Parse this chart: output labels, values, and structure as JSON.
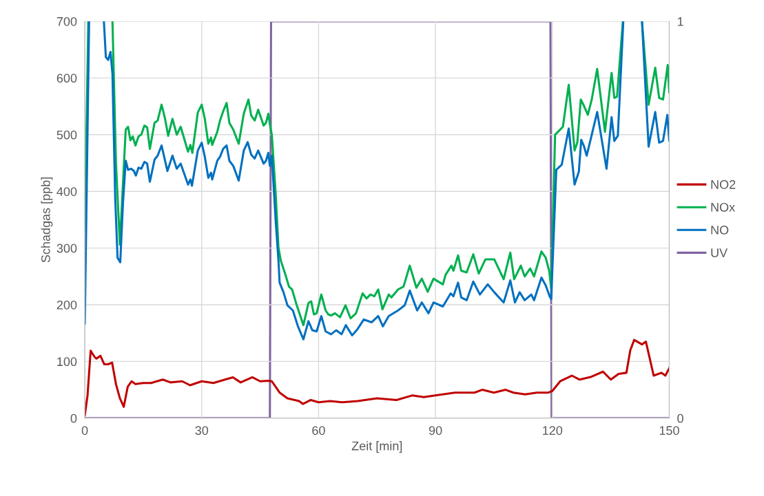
{
  "chart_data": {
    "type": "line",
    "xlabel": "Zeit [min]",
    "ylabel": "Schadgas [ppb]",
    "xlim": [
      0,
      150
    ],
    "xticks": [
      0,
      30,
      60,
      90,
      120,
      150
    ],
    "ylim": [
      0,
      700
    ],
    "yticks": [
      0,
      100,
      200,
      300,
      400,
      500,
      600,
      700
    ],
    "y2lim": [
      0,
      1
    ],
    "y2ticks": [
      0,
      1
    ],
    "grid": true,
    "legend": "right",
    "marker": "none",
    "line_style": "solid",
    "series": [
      {
        "name": "NO2",
        "color": "#c00000",
        "x": [
          0,
          0.7,
          1.5,
          2.5,
          3,
          4,
          5,
          6,
          7,
          8,
          9,
          10,
          11,
          12,
          13,
          15,
          17,
          20,
          22,
          25,
          27,
          30,
          33,
          36,
          38,
          40,
          43,
          45,
          47,
          48,
          50,
          52,
          55,
          56,
          58,
          60,
          63,
          66,
          70,
          75,
          80,
          84,
          87,
          90,
          95,
          100,
          102,
          105,
          108,
          110,
          113,
          116,
          119,
          120,
          122,
          125,
          127,
          130,
          133,
          135,
          137,
          139,
          140,
          141,
          143,
          144,
          146,
          148,
          149,
          150
        ],
        "values": [
          5,
          40,
          119,
          108,
          105,
          110,
          95,
          95,
          98,
          60,
          35,
          20,
          55,
          65,
          60,
          62,
          62,
          68,
          63,
          65,
          58,
          65,
          62,
          68,
          72,
          63,
          72,
          65,
          66,
          65,
          45,
          35,
          30,
          25,
          32,
          28,
          30,
          28,
          30,
          35,
          32,
          40,
          37,
          40,
          45,
          45,
          50,
          45,
          50,
          45,
          42,
          45,
          45,
          48,
          65,
          75,
          68,
          73,
          82,
          68,
          78,
          80,
          120,
          138,
          130,
          135,
          75,
          80,
          75,
          88
        ]
      },
      {
        "name": "NOx",
        "color": "#00b050",
        "x": [
          0,
          0.9,
          4,
          7.1,
          8,
          9,
          10.5,
          11.1,
          11.7,
          12.3,
          13,
          13.8,
          14.5,
          15.3,
          16,
          16.7,
          17.9,
          18.7,
          19.7,
          20.6,
          21.4,
          22.5,
          23.6,
          24.6,
          26.5,
          27.1,
          27.6,
          29,
          30,
          30.8,
          31.7,
          32.4,
          32.7,
          34,
          34.7,
          35.5,
          36.4,
          37.1,
          38.1,
          39.5,
          40.8,
          42,
          42.7,
          43.6,
          44.5,
          45.9,
          46.5,
          47.1,
          47.5,
          48,
          49,
          49.7,
          50.3,
          51.4,
          52.4,
          53.2,
          54.4,
          56.1,
          57.4,
          58.1,
          58.8,
          59.5,
          60.7,
          61.8,
          62.5,
          63.2,
          64.2,
          65.5,
          66.9,
          68.2,
          69.6,
          71.3,
          72.3,
          73.3,
          74.3,
          75.3,
          76.4,
          78,
          78.7,
          80.4,
          81.8,
          83.4,
          85.1,
          86.5,
          88,
          89.5,
          91.9,
          92.6,
          94.1,
          94.6,
          95.8,
          96.6,
          98,
          99.7,
          101.1,
          102.8,
          105.1,
          107.5,
          109.2,
          110.2,
          111.9,
          112.9,
          114.3,
          115.3,
          117.2,
          118.3,
          119.2,
          119.7,
          120.7,
          122,
          122.7,
          124.2,
          125.7,
          126.4,
          127.3,
          128.1,
          129.1,
          130.1,
          131.5,
          133.5,
          135.2,
          135.9,
          136.6,
          138.1,
          140,
          143,
          144.7,
          146.4,
          147.4,
          148.4,
          149.6,
          150
        ],
        "values": [
          330,
          700,
          null,
          700,
          450,
          306,
          509,
          514,
          490,
          497,
          481,
          497,
          500,
          516,
          513,
          475,
          521,
          525,
          553,
          528,
          498,
          528,
          500,
          514,
          470,
          482,
          468,
          539,
          553,
          528,
          484,
          495,
          482,
          505,
          525,
          541,
          556,
          521,
          509,
          484,
          537,
          562,
          534,
          525,
          544,
          516,
          521,
          537,
          518,
          500,
          394,
          301,
          278,
          255,
          232,
          227,
          199,
          164,
          203,
          206,
          183,
          185,
          218,
          190,
          183,
          181,
          185,
          178,
          199,
          176,
          185,
          220,
          211,
          218,
          215,
          227,
          192,
          218,
          213,
          227,
          232,
          269,
          230,
          246,
          223,
          246,
          236,
          253,
          269,
          260,
          287,
          260,
          257,
          289,
          255,
          280,
          280,
          245,
          292,
          245,
          269,
          250,
          264,
          250,
          294,
          283,
          259,
          229,
          500,
          509,
          514,
          588,
          472,
          486,
          562,
          551,
          535,
          562,
          616,
          505,
          609,
          565,
          567,
          700,
          null,
          700,
          553,
          618,
          565,
          562,
          623,
          575
        ]
      },
      {
        "name": "NO",
        "color": "#0070c0",
        "x": [
          0,
          1.1,
          3,
          4.9,
          5.4,
          6,
          6.6,
          7.1,
          7.8,
          8.4,
          9.1,
          9.8,
          10.5,
          11.1,
          11.9,
          12.6,
          13.1,
          13.8,
          14.5,
          15.3,
          16,
          16.7,
          17.9,
          18.7,
          19.7,
          21.2,
          22.5,
          23.6,
          24.6,
          26.5,
          27.1,
          27.5,
          29,
          30,
          30.8,
          31.7,
          32.4,
          32.7,
          34,
          34.7,
          35.5,
          36.4,
          37.1,
          38.1,
          39.5,
          40.8,
          41.8,
          42.7,
          43.6,
          44.5,
          45.9,
          46.5,
          47.1,
          47.5,
          48,
          49,
          49.7,
          50,
          51,
          52,
          53.4,
          54.7,
          56.1,
          57.4,
          58.4,
          59.5,
          60.7,
          61.8,
          63.2,
          64.5,
          65.9,
          67,
          68.6,
          70,
          71.6,
          73.6,
          75.3,
          76.5,
          78,
          80.4,
          82.1,
          83.4,
          85.3,
          86.5,
          88.2,
          89.5,
          91.9,
          93.9,
          94.6,
          95.8,
          96.6,
          98,
          99.7,
          101.4,
          103.4,
          105.1,
          107.5,
          109.2,
          110.4,
          111.6,
          112.9,
          114.6,
          115.3,
          117.2,
          118.3,
          119.3,
          119.7,
          121,
          122.4,
          124.2,
          125.7,
          126.8,
          127.4,
          128.1,
          128.8,
          129.8,
          131.5,
          133.9,
          135.2,
          135.9,
          136.8,
          138.2,
          140,
          143,
          144.7,
          146.4,
          147.4,
          148.4,
          149.5,
          150
        ],
        "values": [
          167,
          700,
          null,
          700,
          637,
          632,
          646,
          607,
          389,
          283,
          275,
          380,
          454,
          438,
          440,
          436,
          428,
          442,
          440,
          452,
          449,
          417,
          456,
          463,
          481,
          436,
          463,
          440,
          449,
          412,
          421,
          410,
          472,
          486,
          461,
          424,
          433,
          421,
          454,
          461,
          475,
          481,
          454,
          445,
          419,
          472,
          487,
          465,
          458,
          472,
          449,
          454,
          468,
          445,
          463,
          347,
          278,
          239,
          222,
          199,
          190,
          162,
          139,
          171,
          155,
          153,
          180,
          153,
          148,
          155,
          148,
          164,
          146,
          157,
          174,
          169,
          180,
          162,
          180,
          190,
          199,
          225,
          190,
          204,
          185,
          204,
          197,
          220,
          215,
          239,
          213,
          208,
          241,
          218,
          236,
          222,
          204,
          243,
          204,
          222,
          208,
          218,
          208,
          248,
          234,
          215,
          210,
          438,
          447,
          511,
          412,
          435,
          491,
          480,
          463,
          491,
          540,
          440,
          531,
          489,
          498,
          700,
          null,
          700,
          479,
          540,
          486,
          489,
          535,
          490
        ]
      },
      {
        "name": "UV",
        "color": "#8064a2",
        "axis": "y2",
        "x": [
          0,
          47.5,
          47.8,
          119.5,
          119.8,
          150
        ],
        "values": [
          0,
          0,
          1,
          1,
          0,
          0
        ]
      }
    ]
  }
}
